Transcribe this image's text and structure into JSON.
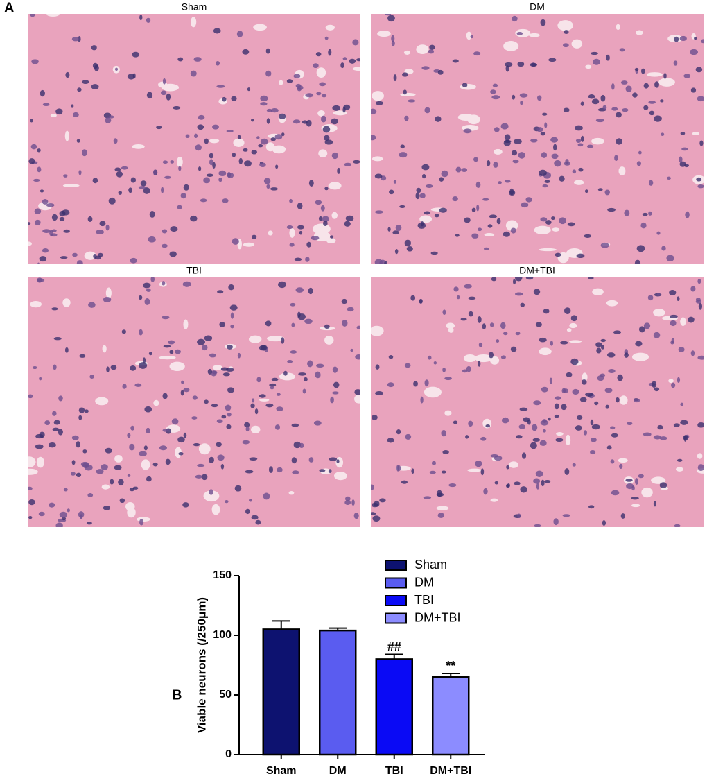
{
  "figure": {
    "panel_a_label": "A",
    "image_titles": [
      "Sham",
      "DM",
      "TBI",
      "DM+TBI"
    ]
  },
  "chart_data": {
    "type": "bar",
    "panel_label": "B",
    "categories": [
      "Sham",
      "DM",
      "TBI",
      "DM+TBI"
    ],
    "values": [
      105,
      104,
      80,
      65
    ],
    "errors": [
      7,
      2,
      4,
      3
    ],
    "bar_labels": [
      null,
      null,
      "##",
      "**"
    ],
    "colors": [
      "#0d1270",
      "#5a5cf0",
      "#0a0af5",
      "#8c8cff"
    ],
    "y_label": "Viable neurons (/250μm)",
    "ylim": [
      0,
      150
    ],
    "yticks": [
      0,
      50,
      100,
      150
    ],
    "grid": false
  }
}
